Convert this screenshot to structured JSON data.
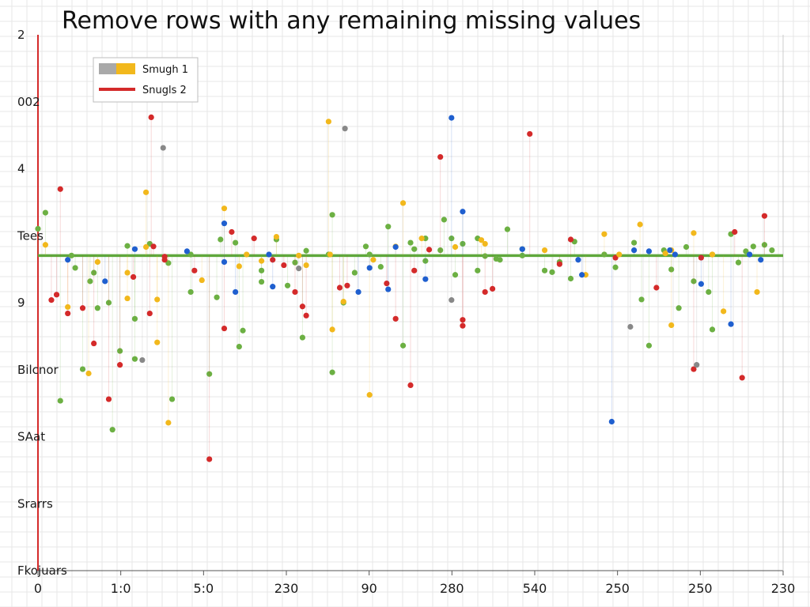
{
  "chart_data": {
    "type": "scatter",
    "title": "Remove rows with any remaining missing values",
    "xlabel": "",
    "ylabel": "",
    "xlim": [
      0,
      1000
    ],
    "ylim": [
      0,
      1000
    ],
    "grid": true,
    "legend_position": "top-left",
    "y_tick_labels": [
      "2",
      "002",
      "4",
      "Tees",
      "9",
      "Bilcnor",
      "SAat",
      "Srarrs",
      "Fkojuars"
    ],
    "x_tick_labels": [
      "0",
      "1:0",
      "5:0",
      "230",
      "90",
      "280",
      "540",
      "250",
      "250",
      "230"
    ],
    "legend": [
      {
        "label": "Smugh 1",
        "colors": [
          "#a9a9a9",
          "#f2b81c"
        ],
        "marker": "box"
      },
      {
        "label": "Snugls 2",
        "colors": [
          "#d42a2a"
        ],
        "marker": "line"
      }
    ],
    "reference_line": {
      "y": 588,
      "color": "#5fa83c"
    },
    "colors": {
      "green": "#6cb043",
      "red": "#d42a2a",
      "yellow": "#f2b81c",
      "blue": "#1f5fcf",
      "gray": "#888888"
    },
    "series": [
      {
        "color": "green",
        "points": [
          [
            0,
            638
          ],
          [
            50,
            565
          ],
          [
            175,
            574
          ],
          [
            300,
            539
          ],
          [
            460,
            567
          ],
          [
            600,
            587
          ],
          [
            700,
            576
          ],
          [
            840,
            598
          ],
          [
            960,
            605
          ],
          [
            130,
            470
          ],
          [
            270,
            418
          ],
          [
            560,
            552
          ],
          [
            45,
            588
          ],
          [
            410,
            500
          ],
          [
            245,
            618
          ],
          [
            690,
            557
          ],
          [
            880,
            540
          ],
          [
            80,
            490
          ],
          [
            110,
            410
          ],
          [
            130,
            395
          ],
          [
            180,
            320
          ],
          [
            230,
            367
          ],
          [
            355,
            435
          ],
          [
            520,
            620
          ],
          [
            395,
            664
          ],
          [
            630,
            637
          ],
          [
            490,
            420
          ],
          [
            335,
            532
          ],
          [
            470,
            642
          ],
          [
            650,
            588
          ],
          [
            715,
            545
          ],
          [
            775,
            566
          ],
          [
            810,
            506
          ],
          [
            850,
            562
          ],
          [
            900,
            520
          ],
          [
            940,
            575
          ],
          [
            150,
            610
          ],
          [
            520,
            578
          ],
          [
            275,
            448
          ],
          [
            60,
            376
          ],
          [
            100,
            263
          ],
          [
            30,
            317
          ],
          [
            75,
            556
          ],
          [
            205,
            590
          ],
          [
            320,
            618
          ],
          [
            425,
            556
          ],
          [
            545,
            655
          ],
          [
            615,
            582
          ],
          [
            760,
            590
          ],
          [
            930,
            628
          ],
          [
            975,
            608
          ],
          [
            205,
            520
          ],
          [
            395,
            370
          ],
          [
            590,
            560
          ],
          [
            820,
            420
          ],
          [
            860,
            490
          ],
          [
            905,
            450
          ],
          [
            265,
            612
          ],
          [
            70,
            540
          ],
          [
            120,
            606
          ],
          [
            360,
            597
          ],
          [
            440,
            605
          ],
          [
            500,
            612
          ],
          [
            540,
            598
          ],
          [
            570,
            610
          ],
          [
            650,
            600
          ],
          [
            720,
            614
          ],
          [
            800,
            612
          ],
          [
            870,
            604
          ],
          [
            950,
            596
          ],
          [
            985,
            598
          ],
          [
            10,
            668
          ],
          [
            95,
            500
          ],
          [
            240,
            510
          ],
          [
            300,
            560
          ],
          [
            345,
            575
          ],
          [
            390,
            590
          ],
          [
            445,
            590
          ],
          [
            505,
            600
          ],
          [
            555,
            620
          ],
          [
            590,
            620
          ],
          [
            620,
            580
          ],
          [
            680,
            560
          ]
        ]
      },
      {
        "color": "red",
        "points": [
          [
            40,
            480
          ],
          [
            60,
            490
          ],
          [
            25,
            515
          ],
          [
            95,
            320
          ],
          [
            155,
            605
          ],
          [
            210,
            560
          ],
          [
            290,
            620
          ],
          [
            345,
            520
          ],
          [
            405,
            528
          ],
          [
            468,
            536
          ],
          [
            505,
            560
          ],
          [
            540,
            772
          ],
          [
            600,
            520
          ],
          [
            660,
            815
          ],
          [
            715,
            618
          ],
          [
            775,
            584
          ],
          [
            830,
            528
          ],
          [
            890,
            584
          ],
          [
            935,
            632
          ],
          [
            975,
            662
          ],
          [
            30,
            712
          ],
          [
            170,
            580
          ],
          [
            260,
            632
          ],
          [
            330,
            570
          ],
          [
            360,
            476
          ],
          [
            500,
            346
          ],
          [
            570,
            468
          ],
          [
            230,
            208
          ],
          [
            110,
            384
          ],
          [
            128,
            548
          ],
          [
            170,
            586
          ],
          [
            250,
            452
          ],
          [
            315,
            580
          ],
          [
            355,
            493
          ],
          [
            415,
            532
          ],
          [
            480,
            470
          ],
          [
            525,
            599
          ],
          [
            610,
            526
          ],
          [
            700,
            572
          ],
          [
            880,
            376
          ],
          [
            945,
            360
          ],
          [
            152,
            846
          ],
          [
            18,
            505
          ],
          [
            570,
            457
          ],
          [
            75,
            424
          ],
          [
            150,
            480
          ]
        ]
      },
      {
        "color": "yellow",
        "points": [
          [
            80,
            576
          ],
          [
            120,
            508
          ],
          [
            160,
            506
          ],
          [
            220,
            542
          ],
          [
            280,
            590
          ],
          [
            320,
            623
          ],
          [
            395,
            450
          ],
          [
            410,
            502
          ],
          [
            450,
            580
          ],
          [
            490,
            686
          ],
          [
            515,
            620
          ],
          [
            595,
            617
          ],
          [
            680,
            598
          ],
          [
            735,
            552
          ],
          [
            780,
            590
          ],
          [
            808,
            646
          ],
          [
            842,
            592
          ],
          [
            880,
            630
          ],
          [
            920,
            484
          ],
          [
            965,
            520
          ],
          [
            40,
            492
          ],
          [
            68,
            368
          ],
          [
            120,
            556
          ],
          [
            145,
            706
          ],
          [
            175,
            276
          ],
          [
            390,
            838
          ],
          [
            445,
            328
          ],
          [
            160,
            426
          ],
          [
            270,
            568
          ],
          [
            350,
            588
          ],
          [
            250,
            676
          ],
          [
            600,
            610
          ],
          [
            760,
            628
          ],
          [
            850,
            598
          ],
          [
            905,
            590
          ],
          [
            360,
            570
          ],
          [
            392,
            590
          ],
          [
            850,
            458
          ],
          [
            905,
            590
          ],
          [
            145,
            604
          ],
          [
            300,
            578
          ],
          [
            480,
            605
          ],
          [
            560,
            604
          ],
          [
            10,
            608
          ]
        ]
      },
      {
        "color": "blue",
        "points": [
          [
            40,
            580
          ],
          [
            90,
            540
          ],
          [
            130,
            600
          ],
          [
            200,
            596
          ],
          [
            265,
            520
          ],
          [
            310,
            590
          ],
          [
            430,
            520
          ],
          [
            470,
            525
          ],
          [
            520,
            544
          ],
          [
            570,
            670
          ],
          [
            650,
            600
          ],
          [
            730,
            552
          ],
          [
            800,
            598
          ],
          [
            855,
            590
          ],
          [
            890,
            535
          ],
          [
            930,
            460
          ],
          [
            970,
            580
          ],
          [
            555,
            845
          ],
          [
            770,
            278
          ],
          [
            250,
            576
          ],
          [
            315,
            530
          ],
          [
            445,
            565
          ],
          [
            725,
            580
          ],
          [
            820,
            596
          ],
          [
            848,
            598
          ],
          [
            955,
            590
          ],
          [
            250,
            648
          ],
          [
            480,
            604
          ]
        ]
      },
      {
        "color": "gray",
        "points": [
          [
            412,
            825
          ],
          [
            168,
            789
          ],
          [
            884,
            384
          ],
          [
            350,
            564
          ],
          [
            555,
            505
          ],
          [
            795,
            455
          ],
          [
            140,
            393
          ]
        ]
      }
    ]
  }
}
